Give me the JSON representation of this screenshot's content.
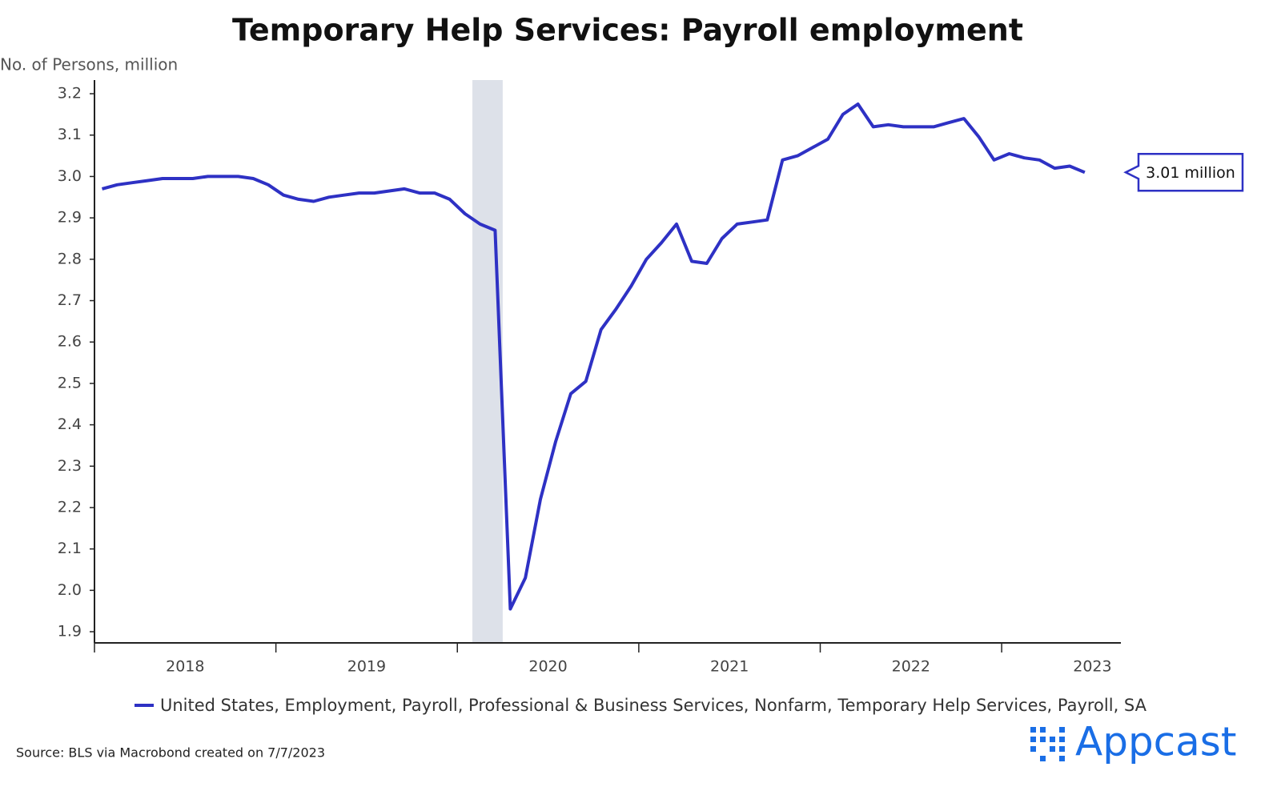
{
  "chart_data": {
    "type": "line",
    "title": "Temporary Help Services: Payroll employment",
    "y_label": "No. of Persons, million",
    "annotation": "3.01 million",
    "source": "Source: BLS via Macrobond created on 7/7/2023",
    "brand": "Appcast",
    "x": [
      2018.042,
      2018.125,
      2018.208,
      2018.292,
      2018.375,
      2018.458,
      2018.542,
      2018.625,
      2018.708,
      2018.792,
      2018.875,
      2018.958,
      2019.042,
      2019.125,
      2019.208,
      2019.292,
      2019.375,
      2019.458,
      2019.542,
      2019.625,
      2019.708,
      2019.792,
      2019.875,
      2019.958,
      2020.042,
      2020.125,
      2020.208,
      2020.292,
      2020.375,
      2020.458,
      2020.542,
      2020.625,
      2020.708,
      2020.792,
      2020.875,
      2020.958,
      2021.042,
      2021.125,
      2021.208,
      2021.292,
      2021.375,
      2021.458,
      2021.542,
      2021.625,
      2021.708,
      2021.792,
      2021.875,
      2021.958,
      2022.042,
      2022.125,
      2022.208,
      2022.292,
      2022.375,
      2022.458,
      2022.542,
      2022.625,
      2022.708,
      2022.792,
      2022.875,
      2022.958,
      2023.042,
      2023.125,
      2023.208,
      2023.292,
      2023.375,
      2023.458
    ],
    "series": [
      {
        "name": "United States, Employment, Payroll, Professional & Business Services, Nonfarm, Temporary Help Services, Payroll, SA",
        "color": "#2e31c4",
        "values": [
          2.97,
          2.98,
          2.985,
          2.99,
          2.995,
          2.995,
          2.995,
          3.0,
          3.0,
          3.0,
          2.995,
          2.98,
          2.955,
          2.945,
          2.94,
          2.95,
          2.955,
          2.96,
          2.96,
          2.965,
          2.97,
          2.96,
          2.96,
          2.945,
          2.91,
          2.885,
          2.87,
          1.955,
          2.03,
          2.22,
          2.36,
          2.475,
          2.505,
          2.63,
          2.68,
          2.735,
          2.8,
          2.84,
          2.885,
          2.795,
          2.79,
          2.85,
          2.885,
          2.89,
          2.895,
          3.04,
          3.05,
          3.07,
          3.09,
          3.15,
          3.175,
          3.12,
          3.125,
          3.12,
          3.12,
          3.12,
          3.13,
          3.14,
          3.095,
          3.04,
          3.055,
          3.045,
          3.04,
          3.02,
          3.025,
          3.01
        ]
      }
    ],
    "shade_x": [
      2020.083,
      2020.25
    ],
    "shade_color": "#dde1e9",
    "xlim": [
      2018,
      2023.657
    ],
    "xticks": [
      2018,
      2019,
      2020,
      2021,
      2022,
      2023
    ],
    "ylim": [
      1.873,
      3.233
    ],
    "yticks": [
      1.9,
      {
        "value": 2,
        "label": "2.0"
      },
      2.1,
      2.2,
      2.3,
      2.4,
      2.5,
      2.6,
      2.7,
      2.8,
      2.9,
      {
        "value": 3,
        "label": "3.0"
      },
      3.1,
      3.2
    ]
  }
}
